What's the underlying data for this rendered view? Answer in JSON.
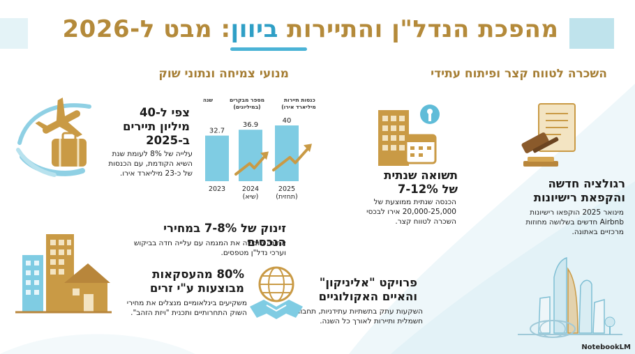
{
  "title": {
    "part1": "מהפכת הנדל\"ן והתיירות ",
    "highlight": "ביוון",
    "part2": ": מבט ל-2026"
  },
  "sections": {
    "right_header": "השכרה לטווח קצר ופיתוח עתידי",
    "left_header": "מנועי צמיחה ונתוני שוק"
  },
  "blocks": {
    "regulation": {
      "title": "רגולציה חדשה והקפאת רישיונות",
      "text": "מינואר 2025 הוקפאו רישיונות Airbnb חדשים בשלושה מחוזות מרכזיים באתונה."
    },
    "yield": {
      "title": "תשואה שנתית של 7-12%",
      "text": "הכנסה שנתית ממוצעת של 20,000-25,000 אירו לבכסי השכרה לטווח קצר."
    },
    "ellinikon": {
      "title": "פרויקט \"אליניקון\" והאיים האקולוגיים",
      "text": "השקעות עתק בתשתיות עתידניות, תחבורה חשמלית ותיירות לאורך כל השנה."
    },
    "tourists": {
      "title": "צפי ל-40 מיליון תיירים ב-2025",
      "text": "עלייה של 8% לעומת שנת השיא הקודמת, עם הכנסות של כ-23 מיליארד אירו."
    },
    "prices": {
      "title": "זינוק של 7-8% במחירי הנכסים",
      "text": "אתונה מובילה את המגמה עם עלייה חדה בביקוש וערכי נדל\"ן מטפסים."
    },
    "foreign": {
      "title": "80% מהעסקאות מבוצעות ע\"י זרים",
      "text": "משקיעים בינלאומיים מנצלים את מחירי השוק התחרותיים ותכנית \"ויזת הזהב\"."
    }
  },
  "chart_data": {
    "type": "bar",
    "column_headers": [
      "שנה",
      "מספר מבקרים (במיליונים)",
      "הכנסות תיירות (במיליארד אירו)"
    ],
    "categories": [
      "2023",
      "2024 (שיא)",
      "2025 (תחזית)"
    ],
    "category_lines": [
      [
        "2023"
      ],
      [
        "2024",
        "(שיא)"
      ],
      [
        "2025",
        "(תחזית)"
      ]
    ],
    "values": [
      32.7,
      36.9,
      40
    ],
    "value_labels": [
      "32.7",
      "36.9",
      "40"
    ],
    "ylim": [
      0,
      45
    ],
    "colors": {
      "bar": "#7fcce3",
      "arrow": "#c99a45"
    }
  },
  "icons": [
    "airplane-icon",
    "suitcase-icon",
    "buildings-icon",
    "globe-handshake-icon",
    "office-building-icon",
    "calendar-icon",
    "key-icon",
    "gavel-icon",
    "document-icon",
    "city-skyline-icon"
  ],
  "colors": {
    "gold": "#b48a3a",
    "teal": "#2f9fc6",
    "light_teal": "#bfe3ec"
  },
  "footer": {
    "logo": "NotebookLM"
  }
}
